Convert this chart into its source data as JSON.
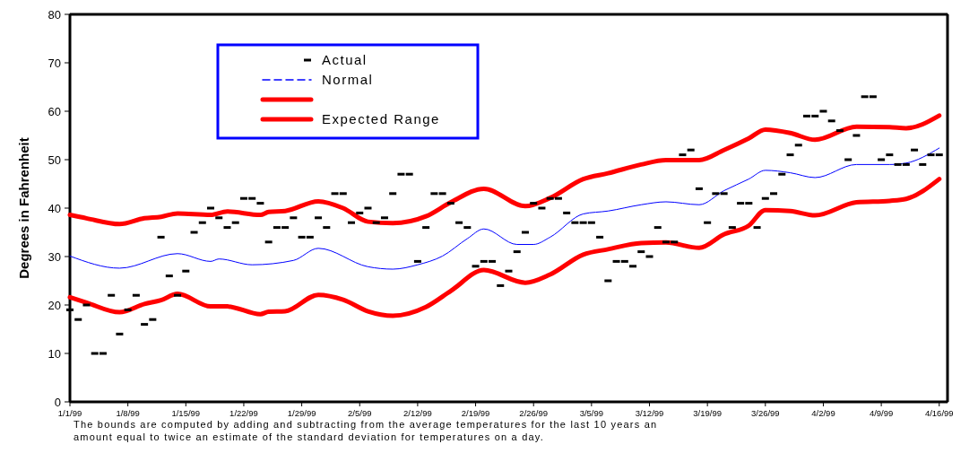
{
  "chart_data": {
    "type": "scatter",
    "ylabel": "Degrees in Fahrenheit",
    "annotations": [
      "The bounds are computed by adding and subtracting from the average temperatures for the last 10 years an amount equal to twice an estimate of the standard deviation for temperatures on a day."
    ],
    "xlim": [
      "1999-01-01",
      "1999-04-17"
    ],
    "xticks": [
      {
        "value": "1999-01-01",
        "label": "1/1/99"
      },
      {
        "value": "1999-01-08",
        "label": "1/8/99"
      },
      {
        "value": "1999-01-15",
        "label": "1/15/99"
      },
      {
        "value": "1999-01-22",
        "label": "1/22/99"
      },
      {
        "value": "1999-01-29",
        "label": "1/29/99"
      },
      {
        "value": "1999-02-05",
        "label": "2/5/99"
      },
      {
        "value": "1999-02-12",
        "label": "2/12/99"
      },
      {
        "value": "1999-02-19",
        "label": "2/19/99"
      },
      {
        "value": "1999-02-26",
        "label": "2/26/99"
      },
      {
        "value": "1999-03-05",
        "label": "3/5/99"
      },
      {
        "value": "1999-03-12",
        "label": "3/12/99"
      },
      {
        "value": "1999-03-19",
        "label": "3/19/99"
      },
      {
        "value": "1999-03-26",
        "label": "3/26/99"
      },
      {
        "value": "1999-04-02",
        "label": "4/2/99"
      },
      {
        "value": "1999-04-09",
        "label": "4/9/99"
      },
      {
        "value": "1999-04-16",
        "label": "4/16/99"
      }
    ],
    "ylim": [
      0,
      80
    ],
    "yticks": [
      0,
      10,
      20,
      30,
      40,
      50,
      60,
      70,
      80
    ],
    "grid": false,
    "legend": "top left",
    "x": [
      "1999-01-01",
      "1999-01-02",
      "1999-01-03",
      "1999-01-04",
      "1999-01-05",
      "1999-01-06",
      "1999-01-07",
      "1999-01-08",
      "1999-01-09",
      "1999-01-10",
      "1999-01-11",
      "1999-01-12",
      "1999-01-13",
      "1999-01-14",
      "1999-01-15",
      "1999-01-16",
      "1999-01-17",
      "1999-01-18",
      "1999-01-19",
      "1999-01-20",
      "1999-01-21",
      "1999-01-22",
      "1999-01-23",
      "1999-01-24",
      "1999-01-25",
      "1999-01-26",
      "1999-01-27",
      "1999-01-28",
      "1999-01-29",
      "1999-01-30",
      "1999-01-31",
      "1999-02-01",
      "1999-02-02",
      "1999-02-03",
      "1999-02-04",
      "1999-02-05",
      "1999-02-06",
      "1999-02-07",
      "1999-02-08",
      "1999-02-09",
      "1999-02-10",
      "1999-02-11",
      "1999-02-12",
      "1999-02-13",
      "1999-02-14",
      "1999-02-15",
      "1999-02-16",
      "1999-02-17",
      "1999-02-18",
      "1999-02-19",
      "1999-02-20",
      "1999-02-21",
      "1999-02-22",
      "1999-02-23",
      "1999-02-24",
      "1999-02-25",
      "1999-02-26",
      "1999-02-27",
      "1999-02-28",
      "1999-03-01",
      "1999-03-02",
      "1999-03-03",
      "1999-03-04",
      "1999-03-05",
      "1999-03-06",
      "1999-03-07",
      "1999-03-08",
      "1999-03-09",
      "1999-03-10",
      "1999-03-11",
      "1999-03-12",
      "1999-03-13",
      "1999-03-14",
      "1999-03-15",
      "1999-03-16",
      "1999-03-17",
      "1999-03-18",
      "1999-03-19",
      "1999-03-20",
      "1999-03-21",
      "1999-03-22",
      "1999-03-23",
      "1999-03-24",
      "1999-03-25",
      "1999-03-26",
      "1999-03-27",
      "1999-03-28",
      "1999-03-29",
      "1999-03-30",
      "1999-03-31",
      "1999-04-01",
      "1999-04-02",
      "1999-04-03",
      "1999-04-04",
      "1999-04-05",
      "1999-04-06",
      "1999-04-07",
      "1999-04-08",
      "1999-04-09",
      "1999-04-10",
      "1999-04-11",
      "1999-04-12",
      "1999-04-13",
      "1999-04-14",
      "1999-04-15",
      "1999-04-16"
    ],
    "series": [
      {
        "name": "Actual",
        "color": "#000000",
        "values": [
          19,
          17,
          20,
          10,
          10,
          22,
          14,
          19,
          22,
          16,
          17,
          34,
          26,
          22,
          27,
          35,
          37,
          40,
          38,
          36,
          37,
          42,
          42,
          41,
          33,
          36,
          36,
          38,
          34,
          34,
          38,
          36,
          43,
          43,
          37,
          39,
          40,
          37,
          38,
          43,
          47,
          47,
          29,
          36,
          43,
          43,
          41,
          37,
          36,
          28,
          29,
          29,
          24,
          27,
          31,
          35,
          41,
          40,
          42,
          42,
          39,
          37,
          37,
          37,
          34,
          25,
          29,
          29,
          28,
          31,
          30,
          36,
          33,
          33,
          51,
          52,
          44,
          37,
          43,
          43,
          36,
          41,
          41,
          36,
          42,
          43,
          47,
          51,
          53,
          59,
          59,
          60,
          58,
          56,
          50,
          55,
          63,
          63,
          50,
          51,
          49,
          49,
          52,
          49,
          51,
          51
        ]
      },
      {
        "name": "Normal",
        "type": "line",
        "color": "#0000ff",
        "x": [
          "1999-01-01",
          "1999-01-07",
          "1999-01-14",
          "1999-01-18",
          "1999-01-19",
          "1999-01-23",
          "1999-01-28",
          "1999-01-31",
          "1999-02-06",
          "1999-02-09",
          "1999-02-12",
          "1999-02-15",
          "1999-02-18",
          "1999-02-20",
          "1999-02-24",
          "1999-02-26",
          "1999-02-28",
          "1999-03-04",
          "1999-03-07",
          "1999-03-11",
          "1999-03-14",
          "1999-03-18",
          "1999-03-21",
          "1999-03-24",
          "1999-03-26",
          "1999-03-29",
          "1999-04-01",
          "1999-04-06",
          "1999-04-10",
          "1999-04-12",
          "1999-04-16"
        ],
        "values": [
          30.1,
          27.6,
          30.6,
          29,
          29.5,
          28.3,
          29.2,
          31.7,
          27.9,
          27.4,
          28.3,
          30.1,
          33.7,
          35.7,
          32.5,
          32.5,
          34,
          38.8,
          39.4,
          40.7,
          41.3,
          40.7,
          43.6,
          46,
          47.8,
          47.3,
          46.3,
          49,
          49,
          49.3,
          52.4
        ]
      },
      {
        "type": "line",
        "color": "#ff0000",
        "x": [
          "1999-01-01",
          "1999-01-03",
          "1999-01-07",
          "1999-01-10",
          "1999-01-12",
          "1999-01-14",
          "1999-01-18",
          "1999-01-20",
          "1999-01-24",
          "1999-01-25",
          "1999-01-27",
          "1999-01-31",
          "1999-02-03",
          "1999-02-06",
          "1999-02-09",
          "1999-02-13",
          "1999-02-16",
          "1999-02-20",
          "1999-02-25",
          "1999-02-28",
          "1999-03-04",
          "1999-03-07",
          "1999-03-11",
          "1999-03-14",
          "1999-03-18",
          "1999-03-21",
          "1999-03-24",
          "1999-03-26",
          "1999-03-29",
          "1999-04-01",
          "1999-04-06",
          "1999-04-10",
          "1999-04-12",
          "1999-04-16"
        ],
        "values": [
          38.6,
          37.9,
          36.7,
          37.9,
          38.2,
          38.9,
          38.6,
          39.3,
          38.6,
          39.2,
          39.4,
          41.4,
          40,
          37.2,
          36.9,
          38.3,
          41.2,
          44,
          40.4,
          42.1,
          46,
          47.2,
          49,
          49.9,
          49.9,
          52,
          54.4,
          56.2,
          55.5,
          54.1,
          56.8,
          56.7,
          56.5,
          59.1
        ]
      },
      {
        "name": "Expected Range",
        "type": "line",
        "color": "#ff0000",
        "x": [
          "1999-01-01",
          "1999-01-03",
          "1999-01-07",
          "1999-01-10",
          "1999-01-12",
          "1999-01-14",
          "1999-01-18",
          "1999-01-20",
          "1999-01-24",
          "1999-01-25",
          "1999-01-27",
          "1999-01-31",
          "1999-02-03",
          "1999-02-06",
          "1999-02-09",
          "1999-02-13",
          "1999-02-16",
          "1999-02-20",
          "1999-02-25",
          "1999-02-28",
          "1999-03-04",
          "1999-03-07",
          "1999-03-11",
          "1999-03-14",
          "1999-03-18",
          "1999-03-21",
          "1999-03-24",
          "1999-03-26",
          "1999-03-29",
          "1999-04-01",
          "1999-04-06",
          "1999-04-10",
          "1999-04-12",
          "1999-04-16"
        ],
        "values": [
          21.6,
          20.5,
          18.5,
          20.2,
          21,
          22.3,
          19.7,
          19.7,
          18.1,
          18.6,
          18.7,
          22.1,
          21.1,
          18.7,
          17.8,
          19.6,
          22.9,
          27.2,
          24.6,
          26.3,
          30.4,
          31.5,
          32.8,
          32.9,
          31.8,
          34.6,
          36.4,
          39.6,
          39.4,
          38.5,
          41.2,
          41.5,
          41.9,
          46
        ]
      }
    ]
  }
}
